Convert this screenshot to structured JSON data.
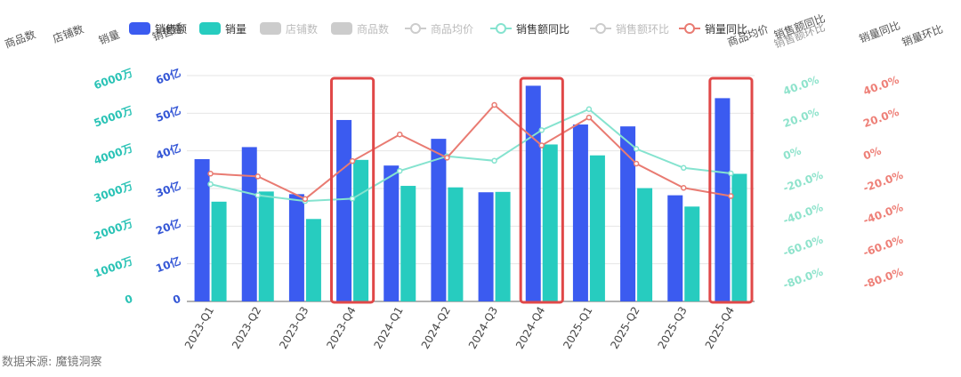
{
  "chart_data": {
    "type": "bar",
    "categories": [
      "2023-Q1",
      "2023-Q2",
      "2023-Q3",
      "2023-Q4",
      "2024-Q1",
      "2024-Q2",
      "2024-Q3",
      "2024-Q4",
      "2025-Q1",
      "2025-Q2",
      "2025-Q3",
      "2025-Q4"
    ],
    "series": [
      {
        "name": "销售额",
        "type": "bar",
        "axis": "sales",
        "color": "#3b5bf0",
        "values": [
          37.8,
          41.0,
          28.5,
          48.2,
          36.1,
          43.2,
          29.0,
          57.3,
          47.0,
          46.5,
          28.2,
          54.0
        ]
      },
      {
        "name": "销量",
        "type": "bar",
        "axis": "volume",
        "color": "#27ccbf",
        "values": [
          2650,
          2920,
          2190,
          3760,
          3070,
          3030,
          2910,
          4170,
          3880,
          3010,
          2520,
          3390
        ]
      },
      {
        "name": "销售额同比",
        "type": "line",
        "axis": "sales_yoy",
        "color": "#85e3cf",
        "values": [
          -17.3,
          -24.2,
          -27.8,
          -26.3,
          -9.1,
          0,
          -2.8,
          16.2,
          29.2,
          4.6,
          -7.2,
          -10.6
        ]
      },
      {
        "name": "销量同比",
        "type": "line",
        "axis": "volume_yoy",
        "color": "#e97b72",
        "values": [
          -10.8,
          -12.5,
          -26.5,
          -3.0,
          13.5,
          -0.9,
          31.8,
          6.7,
          24.0,
          -4.6,
          -19.6,
          -24.7
        ]
      }
    ],
    "legend": {
      "position": "top",
      "items": [
        {
          "name": "销售额",
          "style": "bar",
          "color": "#3b5bf0",
          "active": true
        },
        {
          "name": "销量",
          "style": "bar",
          "color": "#27ccbf",
          "active": true
        },
        {
          "name": "店铺数",
          "style": "bar",
          "color": "#cccccc",
          "active": false
        },
        {
          "name": "商品数",
          "style": "bar",
          "color": "#cccccc",
          "active": false
        },
        {
          "name": "商品均价",
          "style": "line",
          "color": "#cccccc",
          "active": false
        },
        {
          "name": "销售额同比",
          "style": "line",
          "color": "#85e3cf",
          "active": true
        },
        {
          "name": "销售额环比",
          "style": "line",
          "color": "#cccccc",
          "active": false
        },
        {
          "name": "销量同比",
          "style": "line",
          "color": "#e97b72",
          "active": true
        }
      ]
    },
    "axes": {
      "volume": {
        "name": "销量",
        "ticks": [
          "0",
          "1000万",
          "2000万",
          "3000万",
          "4000万",
          "5000万",
          "6000万"
        ],
        "range": [
          0,
          6000
        ],
        "color": "#2bc3b6"
      },
      "sales": {
        "name": "销售额",
        "ticks": [
          "0",
          "10亿",
          "20亿",
          "30亿",
          "40亿",
          "50亿",
          "60亿"
        ],
        "range": [
          0,
          60
        ],
        "color": "#3557d6"
      },
      "sales_yoy": {
        "name": "销售额同比",
        "ticks": [
          "-80.0%",
          "-60.0%",
          "-40.0%",
          "-20.0%",
          "0%",
          "20.0%",
          "40.0%"
        ],
        "range": [
          -90,
          50
        ],
        "color": "#8fe3cc"
      },
      "volume_yoy": {
        "name": "销量同比",
        "ticks": [
          "-80.0%",
          "-60.0%",
          "-40.0%",
          "-20.0%",
          "0%",
          "20.0%",
          "40.0%"
        ],
        "range": [
          -90,
          50
        ],
        "color": "#ee8078"
      }
    },
    "overflow_axis_names": [
      "商品数",
      "店铺数",
      "商品均价",
      "销售额环比",
      "销量环比"
    ],
    "highlight_categories": [
      "2023-Q4",
      "2024-Q4",
      "2025-Q4"
    ],
    "highlight_color": "#e04848",
    "grid": true
  },
  "source_label": "数据来源: 魔镜洞察"
}
